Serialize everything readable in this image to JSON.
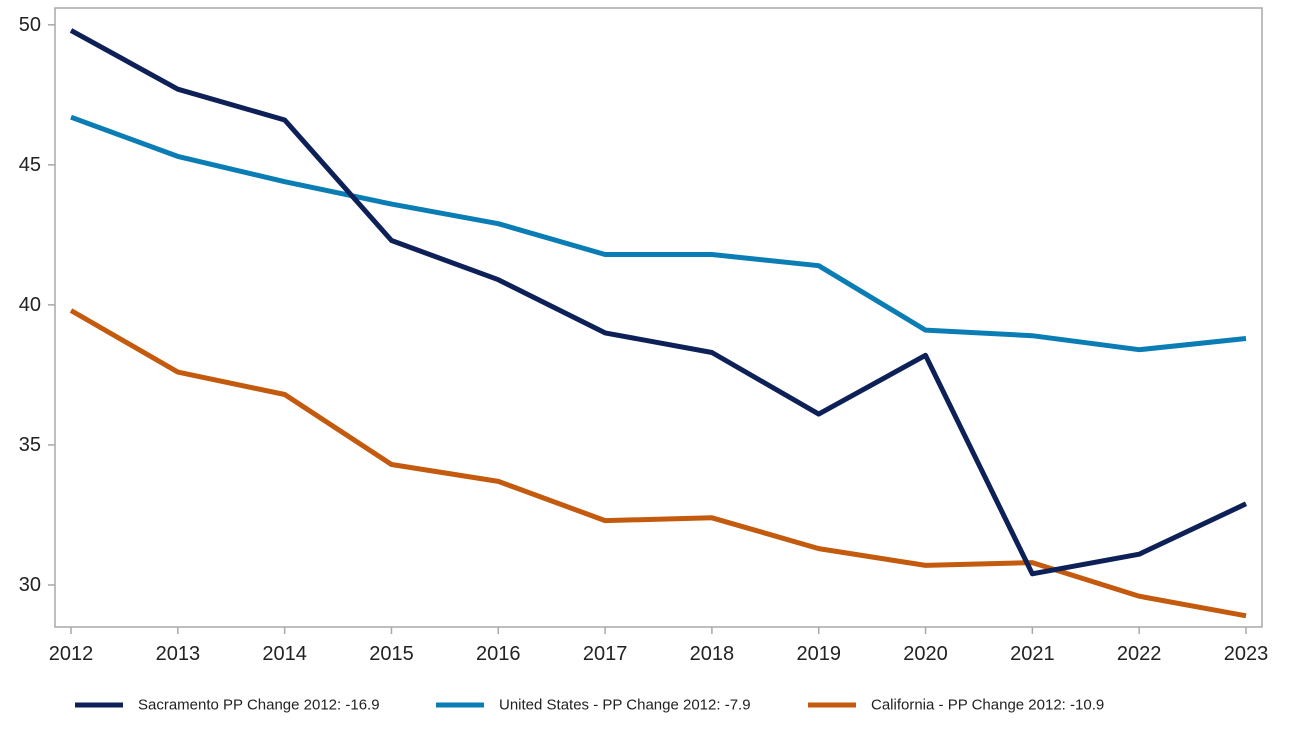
{
  "chart_data": {
    "type": "line",
    "title": "",
    "xlabel": "",
    "ylabel": "",
    "x": [
      2012,
      2013,
      2014,
      2015,
      2016,
      2017,
      2018,
      2019,
      2020,
      2021,
      2022,
      2023
    ],
    "x_tick_labels": [
      "2012",
      "2013",
      "2014",
      "2015",
      "2016",
      "2017",
      "2018",
      "2019",
      "2020",
      "2021",
      "2022",
      "2023"
    ],
    "y_ticks": [
      30,
      35,
      40,
      45,
      50
    ],
    "y_tick_labels": [
      "30",
      "35",
      "40",
      "45",
      "50"
    ],
    "xlim": [
      2011.85,
      2023.15
    ],
    "ylim": [
      28.5,
      50.6
    ],
    "grid": false,
    "legend_placement": "bottom",
    "series": [
      {
        "name": "Sacramento PP Change 2012: -16.9",
        "color": "#0d2158",
        "values": [
          49.8,
          47.7,
          46.6,
          42.3,
          40.9,
          39.0,
          38.3,
          36.1,
          38.2,
          30.4,
          31.1,
          32.9
        ]
      },
      {
        "name": "United States - PP Change 2012: -7.9",
        "color": "#0b7db5",
        "values": [
          46.7,
          45.3,
          44.4,
          43.6,
          42.9,
          41.8,
          41.8,
          41.4,
          39.1,
          38.9,
          38.4,
          38.8
        ]
      },
      {
        "name": "California - PP Change 2012: -10.9",
        "color": "#c45a0e",
        "values": [
          39.8,
          37.6,
          36.8,
          34.3,
          33.7,
          32.3,
          32.4,
          31.3,
          30.7,
          30.8,
          29.6,
          28.9
        ]
      }
    ],
    "frame_color": "#a8a8a8"
  }
}
